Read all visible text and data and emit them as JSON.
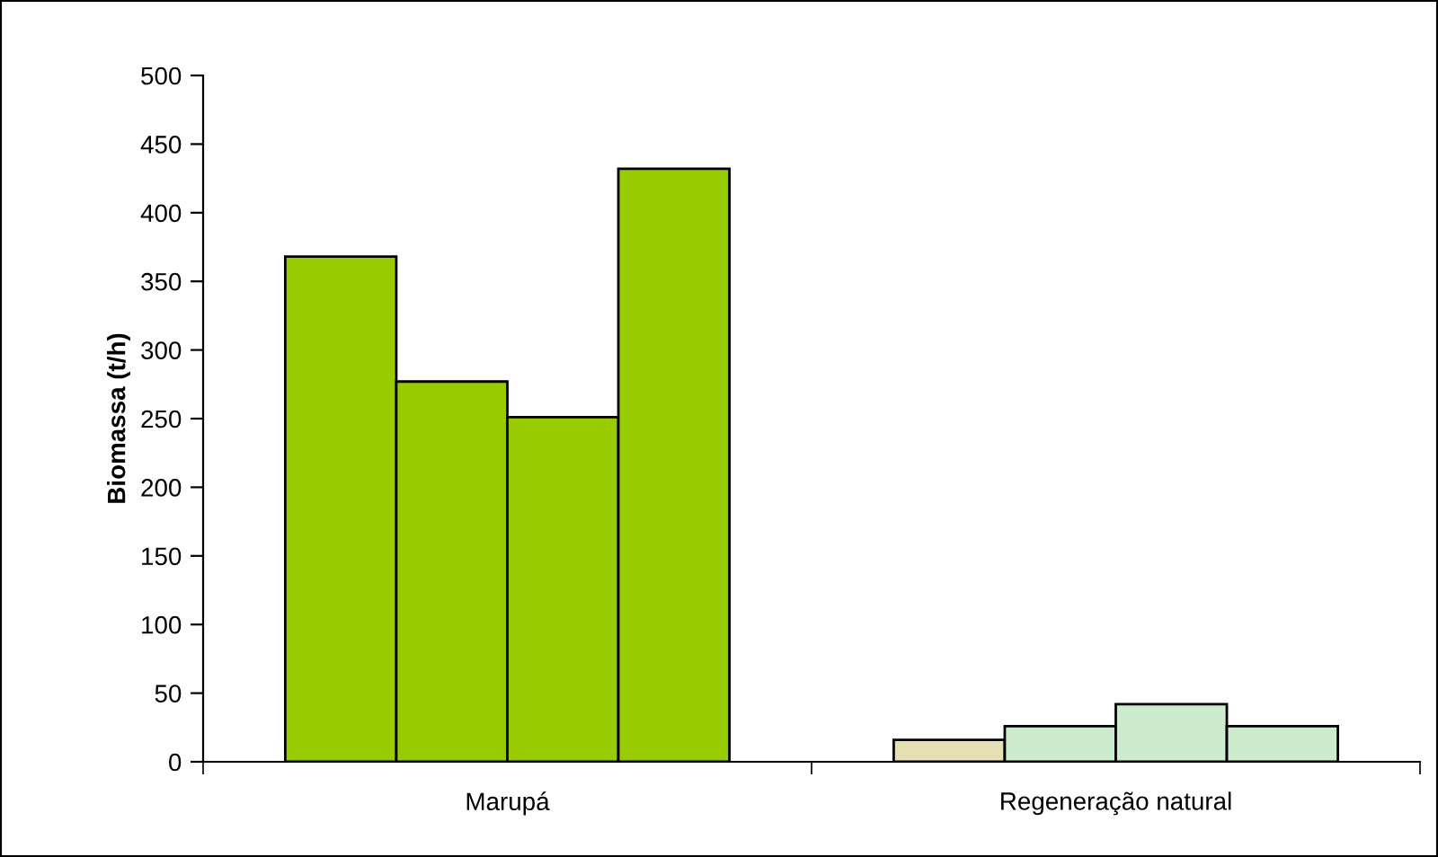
{
  "chart_data": {
    "type": "bar",
    "ylabel": "Biomassa (t/h)",
    "categories": [
      "Marupá",
      "Regeneração natural"
    ],
    "series": [
      {
        "values": [
          368,
          16
        ],
        "colors": [
          "#99cc00",
          "#e6dfb4"
        ]
      },
      {
        "values": [
          277,
          26
        ],
        "colors": [
          "#99cc00",
          "#cdeccd"
        ]
      },
      {
        "values": [
          251,
          42
        ],
        "colors": [
          "#99cc00",
          "#cdeccd"
        ]
      },
      {
        "values": [
          432,
          26
        ],
        "colors": [
          "#99cc00",
          "#cdeccd"
        ]
      }
    ],
    "ylim": [
      0,
      500
    ],
    "yticks": [
      0,
      50,
      100,
      150,
      200,
      250,
      300,
      350,
      400,
      450,
      500
    ],
    "grid": false,
    "legend": false
  }
}
